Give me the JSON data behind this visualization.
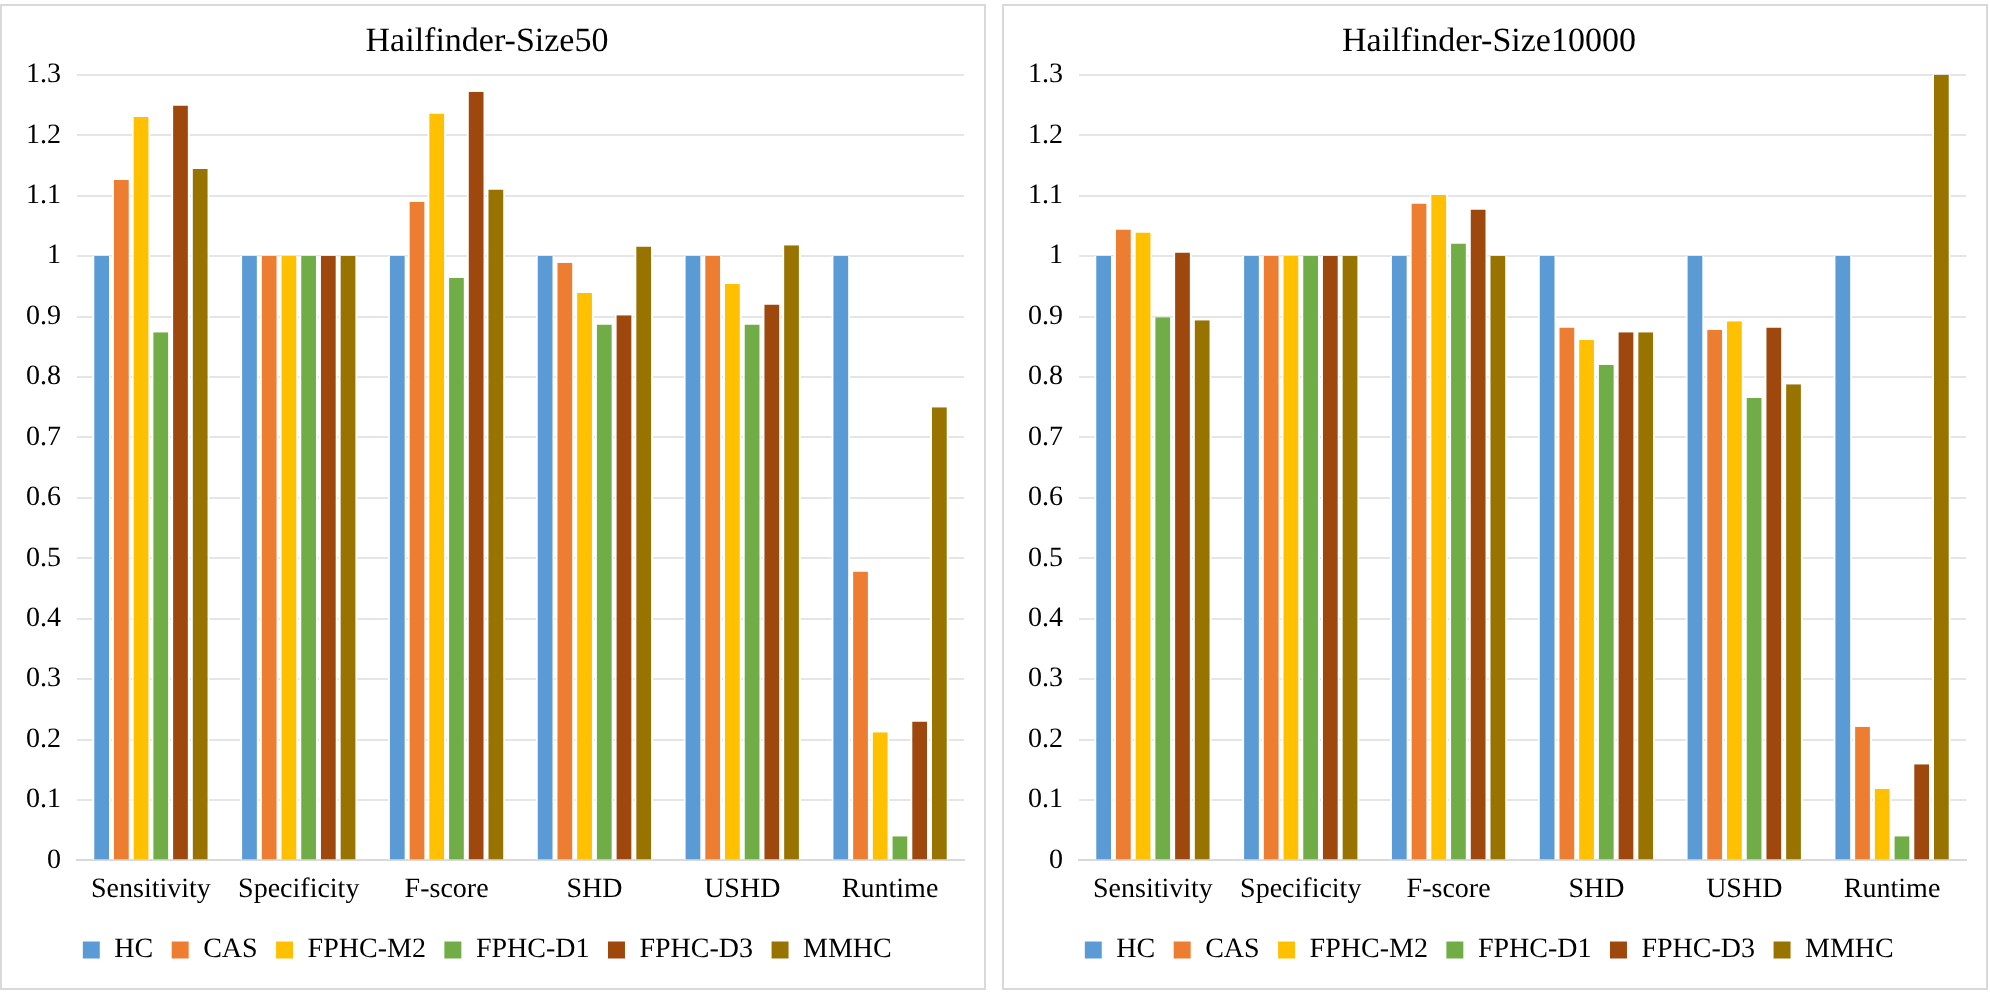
{
  "chart_data": [
    {
      "type": "bar",
      "title": "Hailfinder-Size50",
      "categories": [
        "Sensitivity",
        "Specificity",
        "F-score",
        "SHD",
        "USHD",
        "Runtime"
      ],
      "series": [
        {
          "name": "HC",
          "color": "#5b9bd5",
          "values": [
            1,
            1,
            1,
            1,
            1,
            1
          ]
        },
        {
          "name": "CAS",
          "color": "#ed7d31",
          "values": [
            1.126,
            1,
            1.09,
            0.989,
            1,
            0.478
          ]
        },
        {
          "name": "FPHC-M2",
          "color": "#ffc000",
          "values": [
            1.23,
            1,
            1.236,
            0.939,
            0.954,
            0.212
          ]
        },
        {
          "name": "FPHC-D1",
          "color": "#70ad47",
          "values": [
            0.874,
            1,
            0.964,
            0.887,
            0.887,
            0.04
          ]
        },
        {
          "name": "FPHC-D3",
          "color": "#9e480e",
          "values": [
            1.249,
            1,
            1.272,
            0.902,
            0.92,
            0.23
          ]
        },
        {
          "name": "MMHC",
          "color": "#997300",
          "values": [
            1.144,
            1,
            1.11,
            1.016,
            1.018,
            0.75
          ]
        }
      ],
      "ylim": [
        0,
        1.3
      ],
      "yticks": [
        0,
        0.1,
        0.2,
        0.3,
        0.4,
        0.5,
        0.6,
        0.7,
        0.8,
        0.9,
        1,
        1.1,
        1.2,
        1.3
      ],
      "grid": "y",
      "legend": "bottom"
    },
    {
      "type": "bar",
      "title": "Hailfinder-Size10000",
      "categories": [
        "Sensitivity",
        "Specificity",
        "F-score",
        "SHD",
        "USHD",
        "Runtime"
      ],
      "series": [
        {
          "name": "HC",
          "color": "#5b9bd5",
          "values": [
            1,
            1,
            1,
            1,
            1,
            1
          ]
        },
        {
          "name": "CAS",
          "color": "#ed7d31",
          "values": [
            1.044,
            1,
            1.087,
            0.882,
            0.878,
            0.221
          ]
        },
        {
          "name": "FPHC-M2",
          "color": "#ffc000",
          "values": [
            1.039,
            1,
            1.101,
            0.861,
            0.892,
            0.118
          ]
        },
        {
          "name": "FPHC-D1",
          "color": "#70ad47",
          "values": [
            0.899,
            1,
            1.021,
            0.82,
            0.765,
            0.04
          ]
        },
        {
          "name": "FPHC-D3",
          "color": "#9e480e",
          "values": [
            1.006,
            1,
            1.077,
            0.874,
            0.882,
            0.159
          ]
        },
        {
          "name": "MMHC",
          "color": "#997300",
          "values": [
            0.894,
            1,
            1,
            0.874,
            0.788,
            1.3
          ]
        }
      ],
      "ylim": [
        0,
        1.3
      ],
      "yticks": [
        0,
        0.1,
        0.2,
        0.3,
        0.4,
        0.5,
        0.6,
        0.7,
        0.8,
        0.9,
        1,
        1.1,
        1.2,
        1.3
      ],
      "grid": "y",
      "legend": "bottom"
    }
  ]
}
